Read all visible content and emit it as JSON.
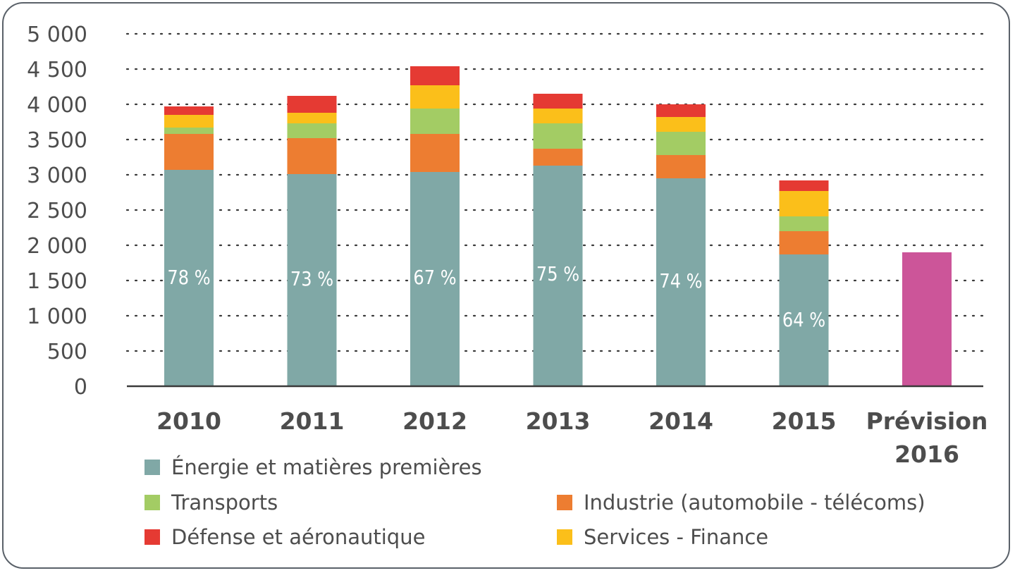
{
  "chart_data": {
    "type": "bar",
    "stacked": true,
    "categories": [
      "2010",
      "2011",
      "2012",
      "2013",
      "2014",
      "2015",
      "Prévision 2016"
    ],
    "category_lines": [
      [
        "2010"
      ],
      [
        "2011"
      ],
      [
        "2012"
      ],
      [
        "2013"
      ],
      [
        "2014"
      ],
      [
        "2015"
      ],
      [
        "Prévision",
        "2016"
      ]
    ],
    "series": [
      {
        "name": "Énergie et matières premières",
        "color": "#80a8a6",
        "values": [
          3070,
          3010,
          3040,
          3130,
          2950,
          1870,
          0
        ]
      },
      {
        "name": "Industrie (automobile - télécoms)",
        "color": "#ed7d31",
        "values": [
          510,
          510,
          540,
          240,
          330,
          330,
          0
        ]
      },
      {
        "name": "Transports",
        "color": "#a3cc64",
        "values": [
          90,
          210,
          360,
          360,
          330,
          210,
          0
        ]
      },
      {
        "name": "Services - Finance",
        "color": "#fbbf1a",
        "values": [
          180,
          150,
          330,
          210,
          210,
          360,
          0
        ]
      },
      {
        "name": "Défense et aéronautique",
        "color": "#e53a33",
        "values": [
          120,
          240,
          270,
          210,
          180,
          150,
          0
        ]
      },
      {
        "name": "Prévision 2016",
        "color": "#cc5599",
        "values": [
          0,
          0,
          0,
          0,
          0,
          0,
          1900
        ]
      }
    ],
    "bar_labels": [
      "78 %",
      "73 %",
      "67 %",
      "75 %",
      "74 %",
      "64 %",
      ""
    ],
    "bar_label_values": [
      1550,
      1530,
      1550,
      1600,
      1500,
      950,
      null
    ],
    "yticks": [
      0,
      500,
      1000,
      1500,
      2000,
      2500,
      3000,
      3500,
      4000,
      4500,
      5000
    ],
    "ytick_labels": [
      "0",
      "500",
      "1 000",
      "1 500",
      "2 000",
      "2 500",
      "3 000",
      "3 500",
      "4 000",
      "4 500",
      "5 000"
    ],
    "ylim": [
      0,
      5000
    ],
    "grid": true,
    "title": "",
    "xlabel": "",
    "ylabel": "",
    "legend_position": "bottom"
  },
  "legend": {
    "items": [
      {
        "label": "Énergie et matières premières",
        "color": "#80a8a6"
      },
      {
        "label": "Transports",
        "color": "#a3cc64"
      },
      {
        "label": "Industrie (automobile - télécoms)",
        "color": "#ed7d31"
      },
      {
        "label": "Défense et aéronautique",
        "color": "#e53a33"
      },
      {
        "label": "Services - Finance",
        "color": "#fbbf1a"
      }
    ]
  }
}
